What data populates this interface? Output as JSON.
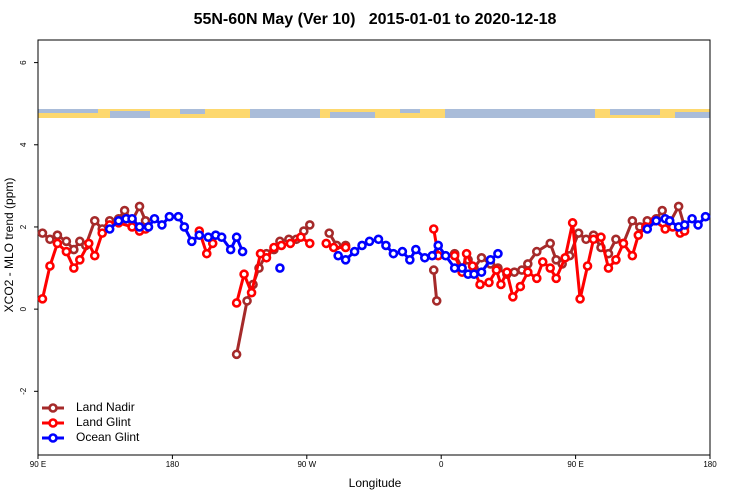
{
  "chart_data": {
    "type": "line",
    "title": "55N-60N May (Ver 10)   2015-01-01 to 2020-12-18",
    "xlabel": "Longitude",
    "ylabel": "XCO2 - MLO trend (ppm)",
    "xlim": [
      90,
      540
    ],
    "xticks": [
      {
        "value": 90,
        "label": "90 E"
      },
      {
        "value": 180,
        "label": "180"
      },
      {
        "value": 270,
        "label": "90 W"
      },
      {
        "value": 360,
        "label": "0"
      },
      {
        "value": 450,
        "label": "90 E"
      },
      {
        "value": 540,
        "label": "180"
      }
    ],
    "ylim": [
      -3.55,
      6.55
    ],
    "yticks": [
      -2,
      0,
      2,
      4,
      6
    ],
    "legend": "bottom-left",
    "series": [
      {
        "name": "Land Nadir",
        "color": "#a52a2a",
        "x": [
          93,
          98,
          103,
          109,
          114,
          118,
          122,
          128,
          133,
          138,
          144,
          148,
          153,
          158,
          162,
          null,
          223,
          230,
          234,
          238,
          243,
          248,
          252,
          258,
          263,
          268,
          272,
          null,
          285,
          290,
          296,
          null,
          355,
          357,
          null,
          369,
          374,
          378,
          382,
          387,
          393,
          398,
          404,
          409,
          414,
          418,
          424,
          433,
          437,
          441,
          446,
          452,
          457,
          462,
          467,
          472,
          477,
          482,
          488,
          493,
          498,
          504,
          508,
          513,
          519,
          523
        ],
        "values": [
          1.85,
          1.7,
          1.8,
          1.65,
          1.45,
          1.65,
          1.55,
          2.15,
          1.95,
          2.15,
          2.2,
          2.4,
          2.15,
          2.5,
          2.15,
          null,
          -1.1,
          0.2,
          0.6,
          1.0,
          1.35,
          1.45,
          1.65,
          1.7,
          1.7,
          1.9,
          2.05,
          null,
          1.85,
          1.55,
          1.55,
          null,
          0.95,
          0.2,
          null,
          1.35,
          1.0,
          1.2,
          1.0,
          1.25,
          1.1,
          1.0,
          0.85,
          0.9,
          0.95,
          1.1,
          1.4,
          1.6,
          1.2,
          1.1,
          1.3,
          1.85,
          1.7,
          1.8,
          1.5,
          1.35,
          1.7,
          1.6,
          2.15,
          2.0,
          2.15,
          2.2,
          2.4,
          2.1,
          2.5,
          2.0
        ]
      },
      {
        "name": "Land Glint",
        "color": "#ff0000",
        "x": [
          93,
          98,
          103,
          109,
          114,
          118,
          124,
          128,
          133,
          138,
          144,
          153,
          158,
          162,
          null,
          198,
          203,
          207,
          null,
          223,
          228,
          233,
          239,
          243,
          248,
          253,
          259,
          266,
          272,
          null,
          283,
          288,
          296,
          null,
          355,
          358,
          null,
          369,
          374,
          377,
          381,
          386,
          392,
          397,
          400,
          404,
          408,
          413,
          418,
          424,
          428,
          433,
          437,
          443,
          448,
          453,
          458,
          462,
          467,
          472,
          477,
          482,
          488,
          492,
          497,
          503,
          510,
          515,
          520,
          523
        ],
        "values": [
          0.25,
          1.05,
          1.6,
          1.4,
          1.0,
          1.2,
          1.6,
          1.3,
          1.85,
          2.05,
          2.1,
          2.0,
          1.9,
          1.95,
          null,
          1.9,
          1.35,
          1.6,
          null,
          0.15,
          0.85,
          0.4,
          1.35,
          1.25,
          1.5,
          1.55,
          1.6,
          1.75,
          1.6,
          null,
          1.6,
          1.5,
          1.5,
          null,
          1.95,
          1.3,
          null,
          1.3,
          0.9,
          1.35,
          1.05,
          0.6,
          0.65,
          0.95,
          0.6,
          0.9,
          0.3,
          0.55,
          0.9,
          0.75,
          1.15,
          1.0,
          0.75,
          1.25,
          2.1,
          0.25,
          1.05,
          1.7,
          1.75,
          1.0,
          1.2,
          1.6,
          1.3,
          1.8,
          2.0,
          2.15,
          1.95,
          2.0,
          1.85,
          1.9
        ]
      },
      {
        "name": "Ocean Glint",
        "color": "#0000ff",
        "x": [
          138,
          144,
          149,
          153,
          158,
          164,
          168,
          173,
          178,
          184,
          188,
          193,
          198,
          204,
          209,
          213,
          219,
          223,
          227,
          null,
          252,
          null,
          291,
          296,
          302,
          307,
          312,
          318,
          323,
          328,
          334,
          339,
          343,
          349,
          354,
          358,
          363,
          369,
          374,
          378,
          382,
          387,
          393,
          398,
          null,
          498,
          504,
          510,
          513,
          519,
          523,
          528,
          532,
          537
        ],
        "values": [
          1.95,
          2.15,
          2.2,
          2.2,
          2.0,
          2.0,
          2.2,
          2.05,
          2.25,
          2.25,
          2.0,
          1.65,
          1.8,
          1.75,
          1.8,
          1.75,
          1.45,
          1.75,
          1.4,
          null,
          1.0,
          null,
          1.3,
          1.2,
          1.4,
          1.55,
          1.65,
          1.7,
          1.55,
          1.35,
          1.4,
          1.2,
          1.45,
          1.25,
          1.3,
          1.55,
          1.3,
          1.0,
          1.0,
          0.85,
          0.85,
          0.9,
          1.2,
          1.35,
          null,
          1.95,
          2.15,
          2.2,
          2.15,
          2.0,
          2.05,
          2.2,
          2.05,
          2.25
        ]
      }
    ]
  }
}
